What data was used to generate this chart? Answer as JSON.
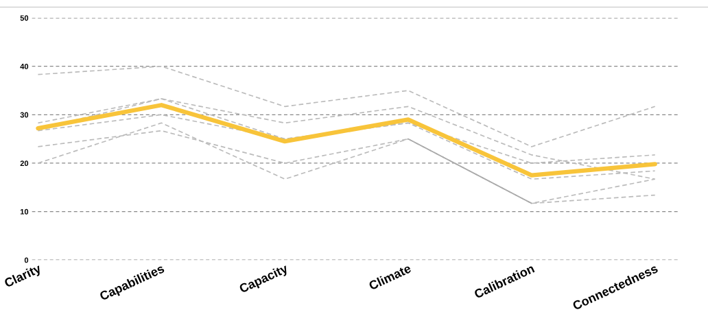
{
  "chart_data": {
    "type": "line",
    "categories": [
      "Clarity",
      "Capabilities",
      "Capacity",
      "Climate",
      "Calibration",
      "Connectedness"
    ],
    "series": [
      {
        "color": "#bbbbbb",
        "line_style": "dashed",
        "values": [
          38.3,
          40,
          31.7,
          35,
          23.4,
          31.7
        ]
      },
      {
        "color": "#bbbbbb",
        "line_style": "dashed",
        "values": [
          28.3,
          33.3,
          28.3,
          31.7,
          21.7,
          16.7
        ]
      },
      {
        "color": "#bbbbbb",
        "line_style": "dashed",
        "values": [
          27,
          33.3,
          25,
          28.3,
          20,
          21.7
        ]
      },
      {
        "color": "#bbbbbb",
        "line_style": "dashed",
        "values": [
          26.7,
          30,
          25,
          28.3,
          16.7,
          18.4
        ]
      },
      {
        "color": "#bbbbbb",
        "line_style": "dashed",
        "values": [
          23.4,
          26.7,
          20,
          25,
          11.7,
          16.7
        ]
      },
      {
        "color": "#bbbbbb",
        "line_style": "dashed",
        "values": [
          20,
          28.3,
          16.7,
          25,
          11.7,
          13.4
        ]
      },
      {
        "color": "#aaaaaa",
        "line_style": "solid",
        "values": [
          null,
          null,
          null,
          25,
          11.7,
          null
        ]
      },
      {
        "color": "#f8c43a",
        "line_style": "solid",
        "values": [
          27.2,
          32,
          24.5,
          29,
          17.5,
          19.8
        ]
      }
    ],
    "ylim": [
      0,
      50
    ],
    "yticks": [
      0,
      10,
      20,
      30,
      40,
      50
    ],
    "grid": "y",
    "marker": "none",
    "legend": false
  }
}
